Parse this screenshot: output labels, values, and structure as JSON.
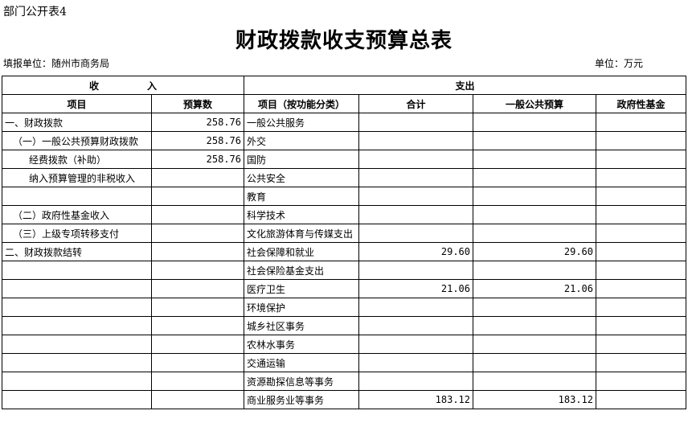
{
  "header": {
    "sheet_label": "部门公开表4",
    "title": "财政拨款收支预算总表",
    "filler": "填报单位：随州市商务局",
    "unit": "单位：万元"
  },
  "table": {
    "group_headers": [
      "收入",
      "支出"
    ],
    "columns": [
      "项目",
      "预算数",
      "项目（按功能分类）",
      "合计",
      "一般公共预算",
      "政府性基金"
    ],
    "rows": [
      {
        "income_item": "一、财政拨款",
        "income_budget": "258.76",
        "expense_item": "一般公共服务"
      },
      {
        "income_item": "（一）一般公共预算财政拨款",
        "income_budget": "258.76",
        "expense_item": "外交"
      },
      {
        "income_item": "经费拨款（补助）",
        "income_budget": "258.76",
        "expense_item": "国防"
      },
      {
        "income_item": "纳入预算管理的非税收入",
        "expense_item": "公共安全"
      },
      {
        "expense_item": "教育"
      },
      {
        "income_item": "（二）政府性基金收入",
        "expense_item": "科学技术"
      },
      {
        "income_item": "（三）上级专项转移支付",
        "expense_item": "文化旅游体育与传媒支出"
      },
      {
        "income_item": "二、财政拨款结转",
        "expense_item": "社会保障和就业",
        "total": "29.60",
        "general": "29.60"
      },
      {
        "expense_item": "社会保险基金支出"
      },
      {
        "expense_item": "医疗卫生",
        "total": "21.06",
        "general": "21.06"
      },
      {
        "expense_item": "环境保护"
      },
      {
        "expense_item": "城乡社区事务"
      },
      {
        "expense_item": "农林水事务"
      },
      {
        "expense_item": "交通运输"
      },
      {
        "expense_item": "资源勘探信息等事务"
      },
      {
        "expense_item": "商业服务业等事务",
        "total": "183.12",
        "general": "183.12"
      }
    ]
  }
}
